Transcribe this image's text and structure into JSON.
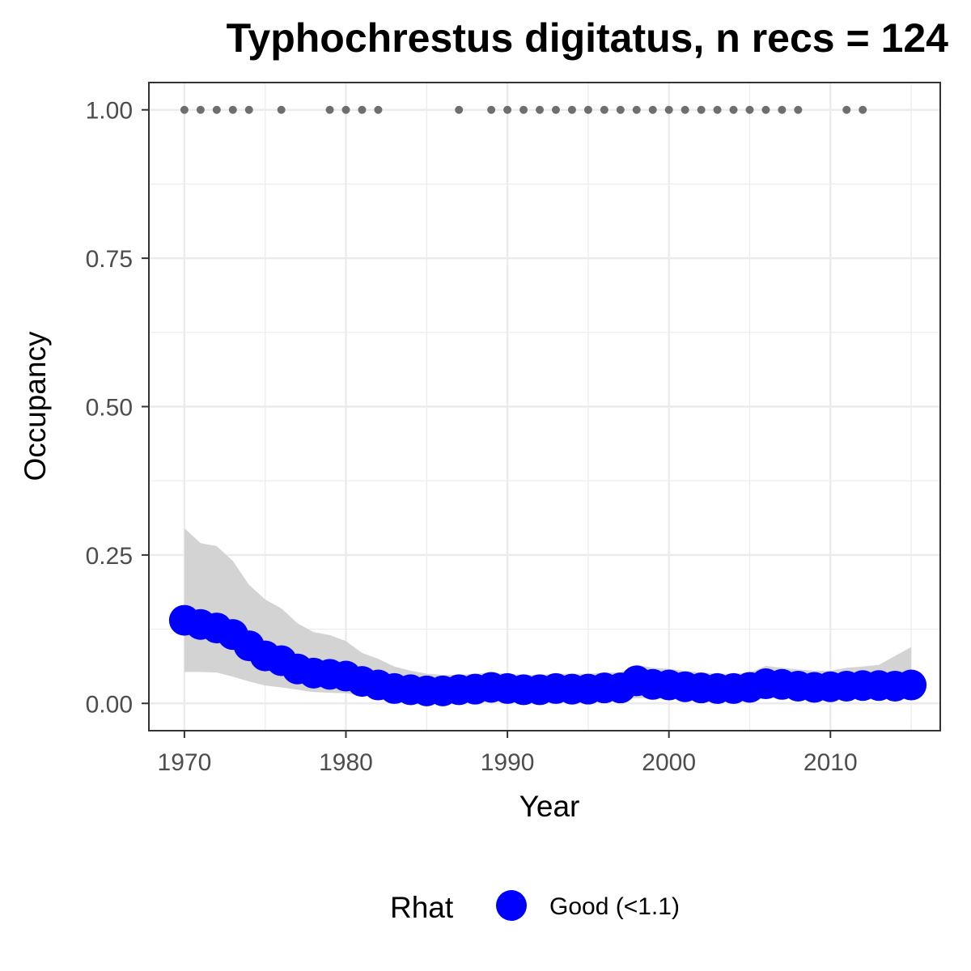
{
  "chart_data": {
    "type": "scatter",
    "title": "Typhochrestus digitatus, n recs = 124",
    "xlabel": "Year",
    "ylabel": "Occupancy",
    "xlim": [
      1967.8,
      2016.8
    ],
    "ylim": [
      -0.046,
      1.046
    ],
    "x_ticks": [
      1970,
      1980,
      1990,
      2000,
      2010
    ],
    "x_tick_labels": [
      "1970",
      "1980",
      "1990",
      "2000",
      "2010"
    ],
    "y_ticks": [
      0,
      0.25,
      0.5,
      0.75,
      1
    ],
    "y_tick_labels": [
      "0.00",
      "0.25",
      "0.50",
      "0.75",
      "1.00"
    ],
    "grid": true,
    "legend": {
      "title": "Rhat",
      "position": "bottom",
      "entries": [
        {
          "label": "Good (<1.1)",
          "color": "#0000ff"
        }
      ]
    },
    "colors": {
      "points": "#0000ff",
      "ribbon": "#d3d3d3",
      "records": "#6e6e6e",
      "panel_border": "#333333",
      "grid": "#ebebeb"
    },
    "series": [
      {
        "name": "Good (<1.1)",
        "x": [
          1970,
          1971,
          1972,
          1973,
          1974,
          1975,
          1976,
          1977,
          1978,
          1979,
          1980,
          1981,
          1982,
          1983,
          1984,
          1985,
          1986,
          1987,
          1988,
          1989,
          1990,
          1991,
          1992,
          1993,
          1994,
          1995,
          1996,
          1997,
          1998,
          1999,
          2000,
          2001,
          2002,
          2003,
          2004,
          2005,
          2006,
          2007,
          2008,
          2009,
          2010,
          2011,
          2012,
          2013,
          2014,
          2015
        ],
        "y": [
          0.14,
          0.133,
          0.127,
          0.116,
          0.097,
          0.08,
          0.072,
          0.058,
          0.051,
          0.049,
          0.046,
          0.037,
          0.031,
          0.025,
          0.023,
          0.021,
          0.021,
          0.023,
          0.024,
          0.027,
          0.025,
          0.023,
          0.023,
          0.025,
          0.024,
          0.024,
          0.026,
          0.026,
          0.038,
          0.032,
          0.031,
          0.028,
          0.026,
          0.025,
          0.025,
          0.027,
          0.033,
          0.032,
          0.029,
          0.027,
          0.028,
          0.029,
          0.03,
          0.03,
          0.029,
          0.031
        ],
        "lower": [
          0.053,
          0.053,
          0.052,
          0.045,
          0.037,
          0.03,
          0.027,
          0.023,
          0.019,
          0.018,
          0.017,
          0.013,
          0.011,
          0.009,
          0.007,
          0.006,
          0.006,
          0.006,
          0.007,
          0.007,
          0.007,
          0.006,
          0.006,
          0.007,
          0.007,
          0.007,
          0.007,
          0.007,
          0.009,
          0.009,
          0.008,
          0.008,
          0.007,
          0.007,
          0.007,
          0.007,
          0.009,
          0.009,
          0.008,
          0.007,
          0.007,
          0.008,
          0.008,
          0.008,
          0.008,
          0.008
        ],
        "upper": [
          0.295,
          0.27,
          0.265,
          0.24,
          0.2,
          0.175,
          0.16,
          0.135,
          0.12,
          0.115,
          0.105,
          0.085,
          0.075,
          0.062,
          0.055,
          0.05,
          0.048,
          0.048,
          0.05,
          0.052,
          0.05,
          0.048,
          0.048,
          0.05,
          0.05,
          0.05,
          0.052,
          0.052,
          0.065,
          0.06,
          0.058,
          0.055,
          0.052,
          0.05,
          0.05,
          0.052,
          0.063,
          0.06,
          0.057,
          0.055,
          0.055,
          0.06,
          0.062,
          0.065,
          0.08,
          0.095
        ]
      },
      {
        "name": "",
        "type": "records",
        "x": [
          1970,
          1971,
          1972,
          1973,
          1974,
          1976,
          1979,
          1980,
          1981,
          1982,
          1987,
          1989,
          1990,
          1991,
          1992,
          1993,
          1994,
          1995,
          1996,
          1997,
          1998,
          1999,
          2000,
          2001,
          2002,
          2003,
          2004,
          2005,
          2006,
          2007,
          2008,
          2011,
          2012
        ],
        "y": [
          1,
          1,
          1,
          1,
          1,
          1,
          1,
          1,
          1,
          1,
          1,
          1,
          1,
          1,
          1,
          1,
          1,
          1,
          1,
          1,
          1,
          1,
          1,
          1,
          1,
          1,
          1,
          1,
          1,
          1,
          1,
          1,
          1
        ]
      }
    ]
  }
}
